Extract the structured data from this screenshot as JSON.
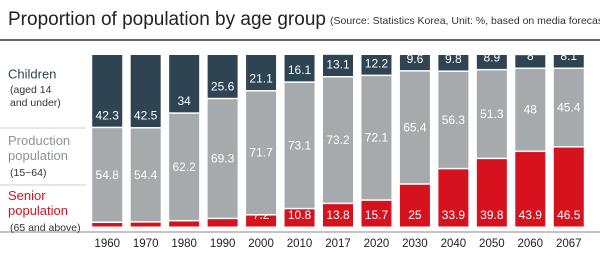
{
  "chart_data": {
    "type": "stacked-bar",
    "title": "Proportion of population by age group",
    "subtitle": "(Source: Statistics Korea, Unit: %, based on media forecasts)",
    "categories": [
      "1960",
      "1970",
      "1980",
      "1990",
      "2000",
      "2010",
      "2017",
      "2020",
      "2030",
      "2040",
      "2050",
      "2060",
      "2067"
    ],
    "ylim": [
      0,
      100
    ],
    "series": [
      {
        "name": "Senior population",
        "note": "(65 and above)",
        "color": "#d7121f",
        "values": [
          2.9,
          3.1,
          3.8,
          5.1,
          7.2,
          10.8,
          13.8,
          15.7,
          25,
          33.9,
          39.8,
          43.9,
          46.5
        ]
      },
      {
        "name": "Production population",
        "note": "(15~64)",
        "color": "#a7aaad",
        "values": [
          54.8,
          54.4,
          62.2,
          69.3,
          71.7,
          73.1,
          73.2,
          72.1,
          65.4,
          56.3,
          51.3,
          48,
          45.4
        ]
      },
      {
        "name": "Children",
        "note": "(aged 14 and under)",
        "color": "#2f4452",
        "values": [
          42.3,
          42.5,
          34,
          25.6,
          21.1,
          16.1,
          13.1,
          12.2,
          9.6,
          9.8,
          8.9,
          8,
          8.1
        ]
      }
    ]
  }
}
